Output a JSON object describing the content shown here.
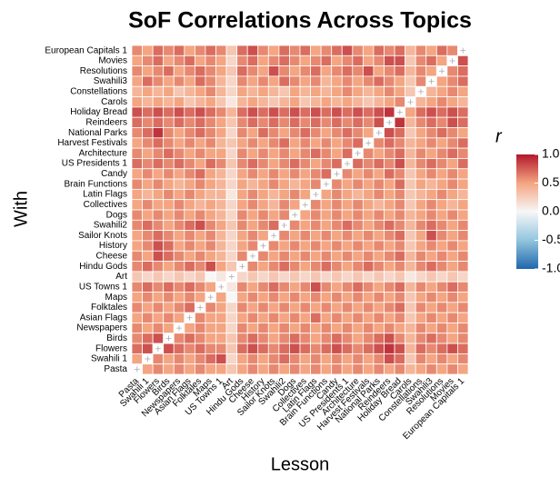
{
  "chart_data": {
    "type": "heatmap",
    "title": "SoF Correlations Across Topics",
    "x_label": "Lesson",
    "y_label": "With",
    "legend_title": "r",
    "clim": [
      {
        "value": -1,
        "label": "-1.0"
      },
      {
        "value": 1,
        "label": "1.0"
      }
    ],
    "cticks": [
      {
        "value": 1,
        "label": "1.0"
      },
      0.5,
      {
        "value": 0,
        "label": "0.0"
      },
      -0.5,
      {
        "value": -1,
        "label": "-1.0"
      }
    ],
    "colors": [
      "#2166ac",
      "#92c5de",
      "#f7f7f7",
      "#f4a582",
      "#b2182b"
    ],
    "x_categories": [
      "Pasta",
      "Swahili 1",
      "Flowers",
      "Birds",
      "Newspapers",
      "Asian Flags",
      "Folktales",
      "Maps",
      "US Towns 1",
      "Art",
      "Hindu Gods",
      "Cheese",
      "History",
      "Sailor Knots",
      "Swahili2",
      "Dogs",
      "Collectives",
      "Latin Flags",
      "Brain Functions",
      "Candy",
      "US Presidents 1",
      "Architecture",
      "Harvest Festivals",
      "National Parks",
      "Reindeers",
      "Holiday Bread",
      "Carols",
      "Constellations",
      "Swahili3",
      "Resolutions",
      "Movies",
      "European Capitals 1"
    ],
    "y_categories": [
      "European Capitals 1",
      "Movies",
      "Resolutions",
      "Swahili3",
      "Constellations",
      "Carols",
      "Holiday Bread",
      "Reindeers",
      "National Parks",
      "Harvest Festivals",
      "Architecture",
      "US Presidents 1",
      "Candy",
      "Brain Functions",
      "Latin Flags",
      "Collectives",
      "Dogs",
      "Swahili2",
      "Sailor Knots",
      "History",
      "Cheese",
      "Hindu Gods",
      "Art",
      "US Towns 1",
      "Maps",
      "Folktales",
      "Asian Flags",
      "Newspapers",
      "Birds",
      "Flowers",
      "Swahili 1",
      "Pasta"
    ],
    "values": [
      [
        0.6,
        0.5,
        0.7,
        0.6,
        0.7,
        0.5,
        0.6,
        0.7,
        0.6,
        0.3,
        0.7,
        0.8,
        0.6,
        0.5,
        0.7,
        0.6,
        0.7,
        0.5,
        0.6,
        0.7,
        0.8,
        0.6,
        0.5,
        0.7,
        0.6,
        0.7,
        0.4,
        0.6,
        0.5,
        0.7,
        0.6,
        null
      ],
      [
        0.5,
        0.6,
        0.7,
        0.5,
        0.6,
        0.7,
        0.5,
        0.6,
        0.5,
        0.2,
        0.6,
        0.7,
        0.5,
        0.6,
        0.7,
        0.6,
        0.5,
        0.6,
        0.7,
        0.5,
        0.6,
        0.7,
        0.5,
        0.6,
        0.8,
        0.8,
        0.3,
        0.6,
        0.7,
        0.5,
        null,
        0.8
      ],
      [
        0.6,
        0.5,
        0.6,
        0.7,
        0.5,
        0.6,
        0.7,
        0.6,
        0.5,
        0.3,
        0.7,
        0.6,
        0.5,
        0.8,
        0.6,
        0.5,
        0.6,
        0.7,
        0.5,
        0.6,
        0.7,
        0.6,
        0.8,
        0.5,
        0.6,
        0.7,
        0.4,
        0.6,
        0.5,
        null,
        0.6,
        0.7
      ],
      [
        0.5,
        0.7,
        0.6,
        0.5,
        0.6,
        0.5,
        0.7,
        0.6,
        0.4,
        0.2,
        0.6,
        0.5,
        0.6,
        0.5,
        0.7,
        0.6,
        0.5,
        0.6,
        0.4,
        0.5,
        0.6,
        0.5,
        0.6,
        0.7,
        0.6,
        0.5,
        0.3,
        0.6,
        null,
        0.5,
        0.6,
        0.7
      ],
      [
        0.4,
        0.5,
        0.4,
        0.5,
        0.3,
        0.4,
        0.5,
        0.6,
        0.4,
        0.2,
        0.5,
        0.4,
        0.5,
        0.4,
        0.3,
        0.5,
        0.4,
        0.5,
        0.4,
        0.5,
        0.6,
        0.5,
        0.4,
        0.5,
        0.6,
        0.5,
        0.3,
        null,
        0.4,
        0.5,
        0.6,
        0.5
      ],
      [
        0.5,
        0.4,
        0.5,
        0.4,
        0.5,
        0.3,
        0.4,
        0.5,
        0.3,
        0.1,
        0.4,
        0.5,
        0.4,
        0.3,
        0.4,
        0.5,
        0.3,
        0.4,
        0.5,
        0.4,
        0.5,
        0.4,
        0.3,
        0.4,
        0.5,
        0.6,
        null,
        0.4,
        0.5,
        0.6,
        0.5,
        0.4
      ],
      [
        0.8,
        0.7,
        0.8,
        0.7,
        0.8,
        0.7,
        0.8,
        0.7,
        0.6,
        0.4,
        0.7,
        0.8,
        0.7,
        0.8,
        0.7,
        0.8,
        0.7,
        0.8,
        0.7,
        0.8,
        0.7,
        0.8,
        0.7,
        0.8,
        0.9,
        null,
        0.5,
        0.7,
        0.8,
        0.7,
        0.8,
        0.7
      ],
      [
        0.7,
        0.6,
        0.7,
        0.6,
        0.7,
        0.6,
        0.7,
        0.6,
        0.5,
        0.3,
        0.6,
        0.7,
        0.6,
        0.7,
        0.6,
        0.7,
        0.6,
        0.7,
        0.6,
        0.7,
        0.6,
        0.7,
        0.6,
        0.8,
        null,
        0.9,
        0.4,
        0.6,
        0.7,
        0.6,
        0.8,
        0.7
      ],
      [
        0.6,
        0.7,
        0.9,
        0.6,
        0.5,
        0.6,
        0.7,
        0.6,
        0.5,
        0.2,
        0.6,
        0.5,
        0.7,
        0.6,
        0.5,
        0.6,
        0.7,
        0.6,
        0.5,
        0.6,
        0.7,
        0.6,
        0.5,
        null,
        0.8,
        0.7,
        0.3,
        0.5,
        0.6,
        0.7,
        0.6,
        0.5
      ],
      [
        0.5,
        0.6,
        0.7,
        0.6,
        0.5,
        0.6,
        0.5,
        0.6,
        0.4,
        0.3,
        0.5,
        0.6,
        0.5,
        0.6,
        0.7,
        0.5,
        0.6,
        0.5,
        0.6,
        0.5,
        0.6,
        0.7,
        null,
        0.6,
        0.7,
        0.6,
        0.4,
        0.5,
        0.6,
        0.5,
        0.6,
        0.7
      ],
      [
        0.6,
        0.5,
        0.6,
        0.7,
        0.6,
        0.5,
        0.6,
        0.5,
        0.5,
        0.2,
        0.6,
        0.5,
        0.6,
        0.5,
        0.6,
        0.5,
        0.6,
        0.7,
        0.6,
        0.5,
        0.7,
        null,
        0.6,
        0.5,
        0.6,
        0.7,
        0.4,
        0.6,
        0.5,
        0.6,
        0.7,
        0.6
      ],
      [
        0.7,
        0.6,
        0.7,
        0.6,
        0.7,
        0.6,
        0.5,
        0.7,
        0.6,
        0.3,
        0.6,
        0.7,
        0.6,
        0.5,
        0.6,
        0.7,
        0.6,
        0.5,
        0.6,
        0.7,
        null,
        0.7,
        0.6,
        0.7,
        0.6,
        0.8,
        0.4,
        0.6,
        0.7,
        0.6,
        0.5,
        0.7
      ],
      [
        0.5,
        0.6,
        0.5,
        0.6,
        0.5,
        0.6,
        0.7,
        0.5,
        0.4,
        0.2,
        0.5,
        0.6,
        0.5,
        0.6,
        0.5,
        0.6,
        0.5,
        0.6,
        0.7,
        null,
        0.6,
        0.5,
        0.6,
        0.5,
        0.7,
        0.6,
        0.3,
        0.5,
        0.6,
        0.5,
        0.6,
        0.5
      ],
      [
        0.6,
        0.5,
        0.6,
        0.5,
        0.4,
        0.5,
        0.6,
        0.5,
        0.4,
        0.2,
        0.5,
        0.4,
        0.5,
        0.6,
        0.5,
        0.4,
        0.5,
        0.6,
        null,
        0.6,
        0.5,
        0.6,
        0.5,
        0.6,
        0.5,
        0.7,
        0.3,
        0.5,
        0.4,
        0.5,
        0.6,
        0.5
      ],
      [
        0.5,
        0.4,
        0.5,
        0.6,
        0.5,
        0.6,
        0.5,
        0.4,
        0.4,
        0.1,
        0.5,
        0.6,
        0.5,
        0.4,
        0.5,
        0.6,
        0.5,
        null,
        0.5,
        0.6,
        0.5,
        0.4,
        0.5,
        0.6,
        0.5,
        0.6,
        0.3,
        0.4,
        0.5,
        0.6,
        0.5,
        0.4
      ],
      [
        0.5,
        0.6,
        0.5,
        0.5,
        0.6,
        0.5,
        0.4,
        0.5,
        0.4,
        0.2,
        0.5,
        0.6,
        0.5,
        0.4,
        0.6,
        0.5,
        null,
        0.6,
        0.5,
        0.6,
        0.5,
        0.6,
        0.5,
        0.4,
        0.5,
        0.6,
        0.3,
        0.5,
        0.6,
        0.5,
        0.4,
        0.5
      ],
      [
        0.6,
        0.5,
        0.6,
        0.5,
        0.6,
        0.5,
        0.6,
        0.5,
        0.4,
        0.2,
        0.6,
        0.5,
        0.6,
        0.5,
        0.6,
        null,
        0.5,
        0.6,
        0.5,
        0.6,
        0.5,
        0.6,
        0.5,
        0.6,
        0.5,
        0.6,
        0.4,
        0.5,
        0.6,
        0.5,
        0.6,
        0.5
      ],
      [
        0.6,
        0.7,
        0.6,
        0.5,
        0.6,
        0.7,
        0.8,
        0.6,
        0.5,
        0.3,
        0.6,
        0.5,
        0.6,
        0.7,
        null,
        0.6,
        0.5,
        0.6,
        0.5,
        0.6,
        0.7,
        0.6,
        0.5,
        0.6,
        0.7,
        0.6,
        0.4,
        0.6,
        0.7,
        0.6,
        0.5,
        0.6
      ],
      [
        0.5,
        0.6,
        0.7,
        0.6,
        0.5,
        0.6,
        0.5,
        0.6,
        0.4,
        0.2,
        0.5,
        0.6,
        0.5,
        null,
        0.6,
        0.5,
        0.6,
        0.5,
        0.6,
        0.5,
        0.6,
        0.5,
        0.6,
        0.5,
        0.6,
        0.7,
        0.3,
        0.5,
        0.8,
        0.6,
        0.5,
        0.6
      ],
      [
        0.5,
        0.6,
        0.8,
        0.7,
        0.5,
        0.6,
        0.5,
        0.6,
        0.4,
        0.2,
        0.5,
        0.6,
        null,
        0.6,
        0.5,
        0.6,
        0.5,
        0.6,
        0.5,
        0.6,
        0.5,
        0.6,
        0.5,
        0.6,
        0.5,
        0.6,
        0.3,
        0.5,
        0.6,
        0.5,
        0.6,
        0.5
      ],
      [
        0.6,
        0.5,
        0.8,
        0.7,
        0.6,
        0.5,
        0.6,
        0.5,
        0.4,
        0.2,
        0.6,
        null,
        0.6,
        0.5,
        0.6,
        0.5,
        0.6,
        0.5,
        0.6,
        0.5,
        0.6,
        0.5,
        0.6,
        0.5,
        0.6,
        0.7,
        0.4,
        0.6,
        0.5,
        0.6,
        0.5,
        0.6
      ],
      [
        0.6,
        0.7,
        0.6,
        0.5,
        0.6,
        0.7,
        0.6,
        0.8,
        0.5,
        0.3,
        null,
        0.6,
        0.5,
        0.6,
        0.7,
        0.6,
        0.5,
        0.6,
        0.7,
        0.6,
        0.5,
        0.6,
        0.7,
        0.6,
        0.5,
        0.6,
        0.4,
        0.6,
        0.7,
        0.6,
        0.5,
        0.6
      ],
      [
        0.3,
        0.2,
        0.3,
        0.2,
        0.3,
        0.2,
        0.3,
        0.0,
        0.1,
        null,
        0.2,
        0.3,
        0.2,
        0.3,
        0.2,
        0.3,
        0.2,
        0.3,
        0.2,
        0.3,
        0.2,
        0.3,
        0.2,
        0.3,
        0.2,
        0.3,
        0.1,
        0.2,
        0.3,
        0.2,
        0.3,
        0.2
      ],
      [
        0.6,
        0.7,
        0.6,
        0.7,
        0.6,
        0.7,
        0.6,
        0.5,
        null,
        0.1,
        0.6,
        0.5,
        0.6,
        0.7,
        0.6,
        0.5,
        0.6,
        0.8,
        0.6,
        0.5,
        0.6,
        0.7,
        0.6,
        0.5,
        0.6,
        0.7,
        0.4,
        0.6,
        0.5,
        0.6,
        0.7,
        0.6
      ],
      [
        0.5,
        0.6,
        0.5,
        0.6,
        0.5,
        0.6,
        0.5,
        null,
        0.5,
        0.0,
        0.5,
        0.6,
        0.5,
        0.6,
        0.5,
        0.6,
        0.5,
        0.6,
        0.5,
        0.6,
        0.5,
        0.6,
        0.5,
        0.6,
        0.5,
        0.6,
        0.3,
        0.5,
        0.6,
        0.5,
        0.6,
        0.5
      ],
      [
        0.6,
        0.5,
        0.6,
        0.5,
        0.6,
        0.7,
        null,
        0.6,
        0.5,
        0.2,
        0.6,
        0.5,
        0.6,
        0.5,
        0.6,
        0.5,
        0.6,
        0.5,
        0.6,
        0.5,
        0.6,
        0.5,
        0.6,
        0.5,
        0.6,
        0.7,
        0.3,
        0.6,
        0.5,
        0.6,
        0.5,
        0.6
      ],
      [
        0.5,
        0.6,
        0.5,
        0.6,
        0.5,
        null,
        0.6,
        0.5,
        0.5,
        0.2,
        0.5,
        0.6,
        0.5,
        0.6,
        0.5,
        0.6,
        0.5,
        0.7,
        0.5,
        0.6,
        0.5,
        0.6,
        0.5,
        0.6,
        0.5,
        0.6,
        0.3,
        0.5,
        0.6,
        0.5,
        0.6,
        0.5
      ],
      [
        0.6,
        0.5,
        0.6,
        0.5,
        null,
        0.5,
        0.6,
        0.5,
        0.5,
        0.2,
        0.6,
        0.5,
        0.6,
        0.5,
        0.6,
        0.5,
        0.6,
        0.5,
        0.6,
        0.5,
        0.6,
        0.5,
        0.6,
        0.5,
        0.6,
        0.5,
        0.4,
        0.6,
        0.5,
        0.6,
        0.5,
        0.6
      ],
      [
        0.6,
        0.7,
        0.8,
        null,
        0.6,
        0.7,
        0.6,
        0.5,
        0.5,
        0.3,
        0.6,
        0.7,
        0.6,
        0.5,
        0.6,
        0.7,
        0.6,
        0.5,
        0.6,
        0.7,
        0.6,
        0.5,
        0.6,
        0.7,
        0.8,
        0.6,
        0.4,
        0.6,
        0.7,
        0.6,
        0.5,
        0.6
      ],
      [
        0.7,
        0.8,
        null,
        0.8,
        0.7,
        0.6,
        0.7,
        0.6,
        0.6,
        0.3,
        0.7,
        0.8,
        0.7,
        0.6,
        0.7,
        0.8,
        0.7,
        0.6,
        0.7,
        0.8,
        0.7,
        0.6,
        0.7,
        0.8,
        0.9,
        0.8,
        0.4,
        0.7,
        0.6,
        0.7,
        0.8,
        0.7
      ],
      [
        0.5,
        null,
        0.6,
        0.5,
        0.6,
        0.5,
        0.6,
        0.7,
        0.8,
        0.2,
        0.5,
        0.6,
        0.5,
        0.6,
        0.7,
        0.6,
        0.5,
        0.6,
        0.5,
        0.6,
        0.5,
        0.6,
        0.5,
        0.6,
        0.8,
        0.7,
        0.3,
        0.6,
        0.5,
        0.6,
        0.5,
        0.6
      ],
      [
        null,
        0.5,
        0.6,
        0.5,
        0.6,
        0.5,
        0.6,
        0.5,
        0.5,
        0.3,
        0.5,
        0.6,
        0.5,
        0.6,
        0.5,
        0.6,
        0.5,
        0.6,
        0.5,
        0.6,
        0.5,
        0.6,
        0.5,
        0.6,
        0.5,
        0.6,
        0.4,
        0.5,
        0.6,
        0.5,
        0.6,
        0.5
      ]
    ]
  }
}
